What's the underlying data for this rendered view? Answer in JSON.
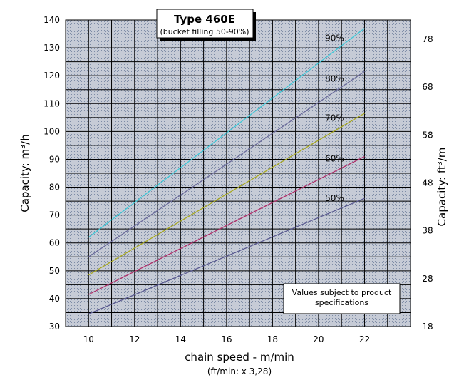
{
  "chart_data": {
    "type": "line",
    "title": "Type 460E",
    "subtitle": "(bucket filling 50-90%)",
    "xlabel": "chain speed - m/min",
    "xlabel_note": "(ft/min: x 3,28)",
    "ylabel": "Capacity: m³/h",
    "y2label": "Capacity: ft³/m",
    "xlim": [
      9,
      24
    ],
    "ylim": [
      30,
      140
    ],
    "x_ticks": [
      10,
      12,
      14,
      16,
      18,
      20,
      22
    ],
    "y_ticks": [
      30,
      40,
      50,
      60,
      70,
      80,
      90,
      100,
      110,
      120,
      130,
      140
    ],
    "y2_ticks": [
      18,
      28,
      38,
      48,
      58,
      68,
      78
    ],
    "grid": true,
    "background": "dotted grey/blue",
    "x": [
      10,
      22
    ],
    "series": [
      {
        "name": "90%",
        "values": [
          62,
          137
        ],
        "color": "#40c8d8"
      },
      {
        "name": "80%",
        "values": [
          55,
          121.5
        ],
        "color": "#6a6a9a"
      },
      {
        "name": "70%",
        "values": [
          48.5,
          106.5
        ],
        "color": "#a8a820"
      },
      {
        "name": "60%",
        "values": [
          41.5,
          91
        ],
        "color": "#b0306a"
      },
      {
        "name": "50%",
        "values": [
          34.5,
          76
        ],
        "color": "#5a5a90"
      }
    ],
    "annotation": "Values subject to product specifications"
  }
}
